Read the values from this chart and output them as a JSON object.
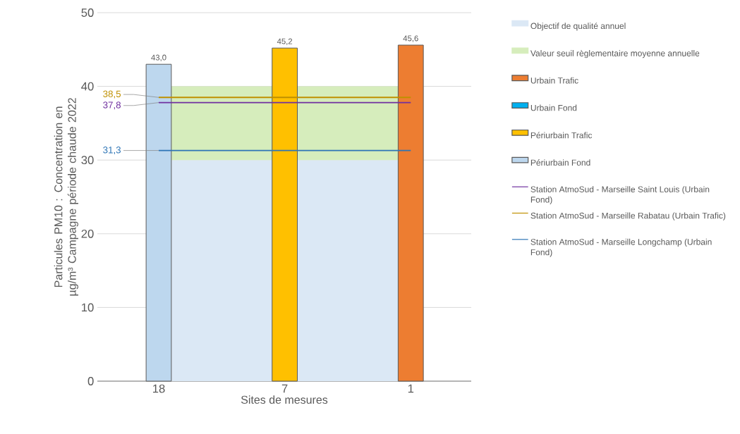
{
  "chart_data": {
    "type": "bar",
    "xlabel": "Sites de mesures",
    "ylabel": "Particules PM10 : Concentration en µg/m³ Campagne période chaude 2022",
    "categories": [
      "18",
      "7",
      "1"
    ],
    "series": [
      {
        "name": "Urbain Trafic",
        "color": "#ed7d31",
        "values": [
          null,
          null,
          45.6
        ],
        "value_labels": [
          null,
          null,
          "45,6"
        ]
      },
      {
        "name": "Urbain Fond",
        "color": "#00b0f0",
        "values": [
          null,
          null,
          null
        ]
      },
      {
        "name": "Périurbain Trafic",
        "color": "#ffc000",
        "values": [
          null,
          45.2,
          null
        ],
        "value_labels": [
          null,
          "45,2",
          null
        ]
      },
      {
        "name": "Périurbain Fond",
        "color": "#bdd7ee",
        "values": [
          43.0,
          null,
          null
        ],
        "value_labels": [
          "43,0",
          null,
          null
        ]
      },
      {
        "name": "Station AtmoSud - Marseille Saint Louis (Urbain Fond)",
        "type": "line",
        "color": "#7030a0",
        "values": [
          37.8,
          37.8,
          37.8
        ],
        "value_labels": [
          "37,8",
          null,
          null
        ]
      },
      {
        "name": "Station AtmoSud - Marseille Rabatau (Urbain Trafic)",
        "type": "line",
        "color": "#bf9000",
        "values": [
          38.5,
          38.5,
          38.5
        ],
        "value_labels": [
          "38,5",
          null,
          null
        ]
      },
      {
        "name": "Station AtmoSud - Marseille Longchamp (Urbain Fond)",
        "type": "line",
        "color": "#2e75b6",
        "values": [
          31.3,
          31.3,
          31.3
        ],
        "value_labels": [
          "31,3",
          null,
          null
        ]
      }
    ],
    "bands": [
      {
        "axis": "y",
        "from": 0,
        "to": 30,
        "label": "Objectif de qualité annuel",
        "color": "#dbe8f5"
      },
      {
        "axis": "y",
        "from": 30,
        "to": 40,
        "label": "Valeur seuil règlementaire moyenne annuelle",
        "color": "#d6edbc"
      }
    ],
    "ylim": [
      0,
      50
    ],
    "yticks": [
      0,
      10,
      20,
      30,
      40,
      50
    ],
    "grid": "y",
    "legend": "right",
    "marker": "none"
  }
}
